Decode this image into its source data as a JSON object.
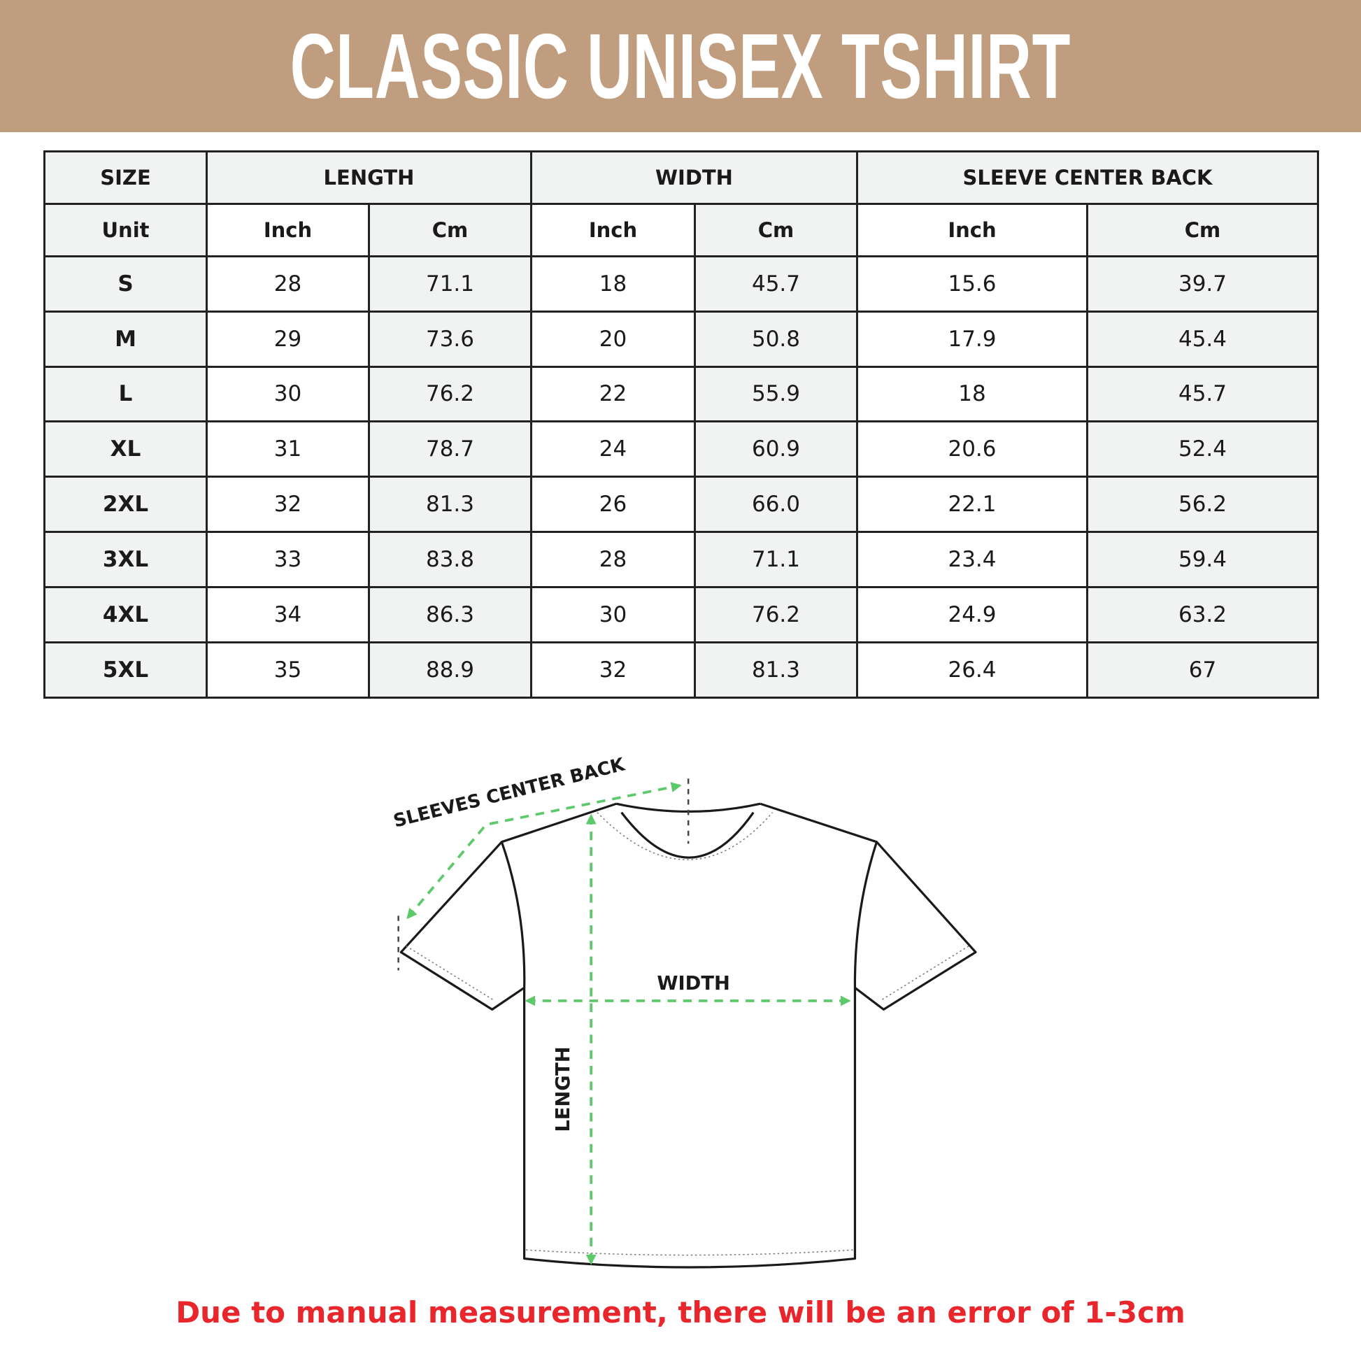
{
  "title": "CLASSIC UNISEX TSHIRT",
  "colors": {
    "banner": "#c09d7e",
    "arrow": "#5cc96a",
    "note": "#e8262b",
    "cell_shade": "#f1f2f2"
  },
  "table": {
    "group_headers": [
      "SIZE",
      "LENGTH",
      "WIDTH",
      "SLEEVE CENTER BACK"
    ],
    "unit_row": [
      "Unit",
      "Inch",
      "Cm",
      "Inch",
      "Cm",
      "Inch",
      "Cm"
    ],
    "rows": [
      [
        "S",
        "28",
        "71.1",
        "18",
        "45.7",
        "15.6",
        "39.7"
      ],
      [
        "M",
        "29",
        "73.6",
        "20",
        "50.8",
        "17.9",
        "45.4"
      ],
      [
        "L",
        "30",
        "76.2",
        "22",
        "55.9",
        "18",
        "45.7"
      ],
      [
        "XL",
        "31",
        "78.7",
        "24",
        "60.9",
        "20.6",
        "52.4"
      ],
      [
        "2XL",
        "32",
        "81.3",
        "26",
        "66.0",
        "22.1",
        "56.2"
      ],
      [
        "3XL",
        "33",
        "83.8",
        "28",
        "71.1",
        "23.4",
        "59.4"
      ],
      [
        "4XL",
        "34",
        "86.3",
        "30",
        "76.2",
        "24.9",
        "63.2"
      ],
      [
        "5XL",
        "35",
        "88.9",
        "32",
        "81.3",
        "26.4",
        "67"
      ]
    ]
  },
  "diagram": {
    "sleeve_label": "SLEEVES CENTER BACK",
    "width_label": "WIDTH",
    "length_label": "LENGTH"
  },
  "note": "Due to manual measurement, there will be an error of 1-3cm"
}
